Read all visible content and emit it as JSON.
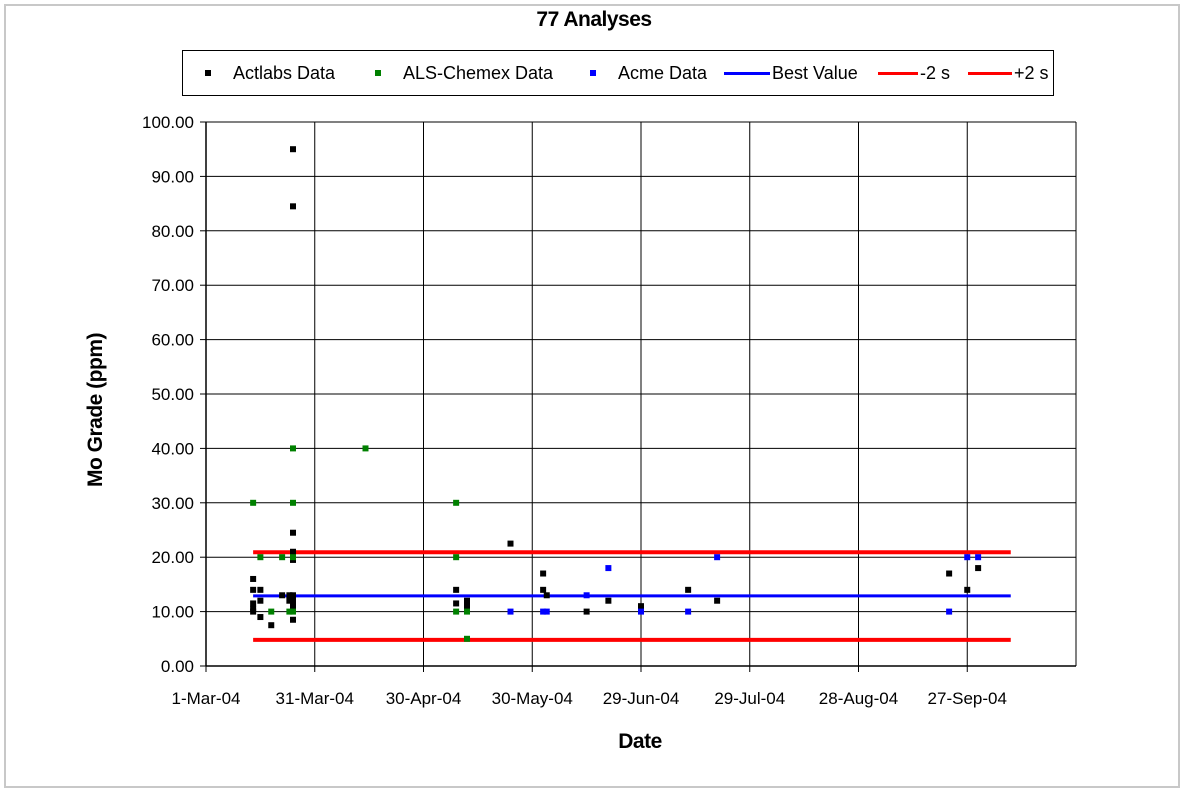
{
  "chart_data": {
    "type": "scatter",
    "title": "77 Analyses",
    "xlabel": "Date",
    "ylabel": "Mo Grade (ppm)",
    "x_axis": {
      "type": "date",
      "min": "2004-03-01",
      "max": "2004-10-27",
      "tick_labels": [
        "1-Mar-04",
        "31-Mar-04",
        "30-Apr-04",
        "30-May-04",
        "29-Jun-04",
        "29-Jul-04",
        "28-Aug-04",
        "27-Sep-04"
      ],
      "tick_dates": [
        "2004-03-01",
        "2004-03-31",
        "2004-04-30",
        "2004-05-30",
        "2004-06-29",
        "2004-07-29",
        "2004-08-28",
        "2004-09-27"
      ]
    },
    "y_axis": {
      "min": 0,
      "max": 100,
      "tick_labels": [
        "0.00",
        "10.00",
        "20.00",
        "30.00",
        "40.00",
        "50.00",
        "60.00",
        "70.00",
        "80.00",
        "90.00",
        "100.00"
      ],
      "tick_values": [
        0,
        10,
        20,
        30,
        40,
        50,
        60,
        70,
        80,
        90,
        100
      ]
    },
    "grid": true,
    "legend_position": "top",
    "series": [
      {
        "name": "Actlabs Data",
        "kind": "points",
        "color": "#000000",
        "points": [
          {
            "x": "2004-03-14",
            "y": 16
          },
          {
            "x": "2004-03-14",
            "y": 14
          },
          {
            "x": "2004-03-14",
            "y": 11.5
          },
          {
            "x": "2004-03-14",
            "y": 10.5
          },
          {
            "x": "2004-03-14",
            "y": 10
          },
          {
            "x": "2004-03-16",
            "y": 14
          },
          {
            "x": "2004-03-16",
            "y": 12
          },
          {
            "x": "2004-03-16",
            "y": 9
          },
          {
            "x": "2004-03-19",
            "y": 7.5
          },
          {
            "x": "2004-03-22",
            "y": 13
          },
          {
            "x": "2004-03-25",
            "y": 95
          },
          {
            "x": "2004-03-25",
            "y": 84.5
          },
          {
            "x": "2004-03-25",
            "y": 24.5
          },
          {
            "x": "2004-03-25",
            "y": 21
          },
          {
            "x": "2004-03-25",
            "y": 20
          },
          {
            "x": "2004-03-25",
            "y": 19.5
          },
          {
            "x": "2004-03-25",
            "y": 13
          },
          {
            "x": "2004-03-25",
            "y": 12.5
          },
          {
            "x": "2004-03-25",
            "y": 12
          },
          {
            "x": "2004-03-25",
            "y": 11
          },
          {
            "x": "2004-03-25",
            "y": 8.5
          },
          {
            "x": "2004-03-24",
            "y": 12
          },
          {
            "x": "2004-03-24",
            "y": 13
          },
          {
            "x": "2004-05-09",
            "y": 14
          },
          {
            "x": "2004-05-09",
            "y": 11.5
          },
          {
            "x": "2004-05-12",
            "y": 12
          },
          {
            "x": "2004-05-12",
            "y": 11
          },
          {
            "x": "2004-05-24",
            "y": 22.5
          },
          {
            "x": "2004-06-02",
            "y": 17
          },
          {
            "x": "2004-06-02",
            "y": 14
          },
          {
            "x": "2004-06-03",
            "y": 13
          },
          {
            "x": "2004-06-14",
            "y": 10
          },
          {
            "x": "2004-06-20",
            "y": 12
          },
          {
            "x": "2004-06-29",
            "y": 11
          },
          {
            "x": "2004-07-12",
            "y": 14
          },
          {
            "x": "2004-07-20",
            "y": 12
          },
          {
            "x": "2004-09-22",
            "y": 17
          },
          {
            "x": "2004-09-27",
            "y": 14
          },
          {
            "x": "2004-09-30",
            "y": 18
          }
        ]
      },
      {
        "name": "ALS-Chemex Data",
        "kind": "points",
        "color": "#008000",
        "points": [
          {
            "x": "2004-03-14",
            "y": 30
          },
          {
            "x": "2004-03-16",
            "y": 20
          },
          {
            "x": "2004-03-19",
            "y": 10
          },
          {
            "x": "2004-03-22",
            "y": 20
          },
          {
            "x": "2004-03-24",
            "y": 10
          },
          {
            "x": "2004-03-25",
            "y": 40
          },
          {
            "x": "2004-03-25",
            "y": 30
          },
          {
            "x": "2004-03-25",
            "y": 20
          },
          {
            "x": "2004-03-25",
            "y": 10
          },
          {
            "x": "2004-04-14",
            "y": 40
          },
          {
            "x": "2004-05-09",
            "y": 30
          },
          {
            "x": "2004-05-09",
            "y": 20
          },
          {
            "x": "2004-05-09",
            "y": 10
          },
          {
            "x": "2004-05-12",
            "y": 10
          },
          {
            "x": "2004-05-12",
            "y": 5
          }
        ]
      },
      {
        "name": "Acme Data",
        "kind": "points",
        "color": "#0000ff",
        "points": [
          {
            "x": "2004-05-24",
            "y": 10
          },
          {
            "x": "2004-06-02",
            "y": 10
          },
          {
            "x": "2004-06-03",
            "y": 10
          },
          {
            "x": "2004-06-14",
            "y": 13
          },
          {
            "x": "2004-06-20",
            "y": 18
          },
          {
            "x": "2004-06-29",
            "y": 10
          },
          {
            "x": "2004-07-12",
            "y": 10
          },
          {
            "x": "2004-07-20",
            "y": 20
          },
          {
            "x": "2004-09-22",
            "y": 10
          },
          {
            "x": "2004-09-27",
            "y": 20
          },
          {
            "x": "2004-09-30",
            "y": 20
          }
        ]
      },
      {
        "name": "Best Value",
        "kind": "line",
        "color": "#0000ff",
        "points": [
          {
            "x": "2004-03-14",
            "y": 12.9
          },
          {
            "x": "2004-10-09",
            "y": 12.9
          }
        ]
      },
      {
        "name": "-2 s",
        "kind": "line",
        "color": "#ff0000",
        "points": [
          {
            "x": "2004-03-14",
            "y": 4.8
          },
          {
            "x": "2004-10-09",
            "y": 4.8
          }
        ]
      },
      {
        "name": "+2 s",
        "kind": "line",
        "color": "#ff0000",
        "points": [
          {
            "x": "2004-03-14",
            "y": 20.9
          },
          {
            "x": "2004-10-09",
            "y": 20.9
          }
        ]
      }
    ]
  }
}
